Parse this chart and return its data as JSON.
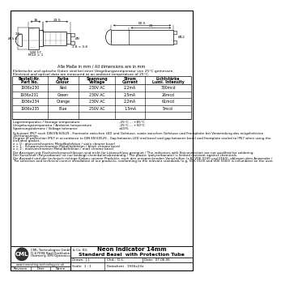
{
  "title_line1": "Neon Indicator 14mm",
  "title_line2": "Standard Bezel  with Protection Tube",
  "company_name": "CML",
  "company_line1": "CML Technologies GmbH & Co. KG",
  "company_line2": "D-67098 Bad Dürkheim",
  "company_line3": "(formerly EMI Optronics)",
  "website": "www.innovating-technology.co.uk",
  "drawn_by": "J.J.",
  "checked_by": "D.L.",
  "date": "07.06.06",
  "scale": "1 : 1",
  "datasheet_num": "1936x23x",
  "dim_note": "Alle Maße in mm / All dimensions are in mm",
  "elec_note_de": "Elektrische und optische Daten sind bei einer Umgebungstemperatur von 25°C gemessen.",
  "elec_note_en": "Electrical and optical data are measured at an ambient temperature of 25°C.",
  "headers_de": [
    "Bestell-Nr.",
    "Farbe",
    "Spannung",
    "Strom",
    "Lichtstärke"
  ],
  "headers_en": [
    "Part No.",
    "Colour",
    "Voltage",
    "Current",
    "Lumi. Intensity"
  ],
  "table_rows": [
    [
      "1936x230",
      "Red",
      "230V AC",
      "2.2mA",
      "330mcd"
    ],
    [
      "1936x231",
      "Green",
      "230V AC",
      "2.5mA",
      "26mcd"
    ],
    [
      "1936x234",
      "Orange",
      "230V AC",
      "2.2mA",
      "61mcd"
    ],
    [
      "1936x235",
      "Blue",
      "250V AC",
      "1.5mA",
      "5mcd"
    ]
  ],
  "storage_label": "Lagertemperatur / Storage temperature",
  "storage_val": "-25°C ... +85°C",
  "ambient_label": "Umgebungstemperatur / Ambient temperature",
  "ambient_val": "-25°C ... +50°C",
  "voltage_label": "Spannungstoleranz / Voltage tolerance",
  "voltage_val": "±10%",
  "prot_de1": "Schutzart IP67 nach DIN EN 60529 - Frontseite zwischen LED und Gehäuse, sowie zwischen Gehäuse und Frontplatte bei Verwendung des mitgelieferten",
  "prot_de2": "Dichtungsrings.",
  "prot_en1": "Degree of protection IP67 in accordance to DIN EN 60529 - Gap between LED and bezel and gap between bezel and frontplate sealed to IP67 when using the",
  "prot_en2": "included gasket.",
  "finish0": "x = 0 : glanzverchromter Metallbefektion / satin chrome bezel",
  "finish1": "x = 1 : schwarzverchromter Metallbefektion / black chrome bezel",
  "finish2": "x = 2 : mattverchromter Metallbefektion / matt chrome bezel",
  "note1": "Die Anzeigen mit Flachsteckeranschlüssen sind nicht für Lötanschluss geeignet / The indicators with flatconnection are not qualified for soldering.",
  "note2": "Der Kunststoff (Polycarbonat) ist nur bedingt chemikaliensbeständig / The plastic (polycarbonate) is limited resistant against chemicals.",
  "note3a": "Die Auswahl und der technisch richtige Einbau unserer Produkte, nach den entsprechenden Vorschriften (z.B. VDE 0100 und 0160), obliegen dem Anwender /",
  "note3b": "The selection and technical correct installation of our products, conforming to the relevant standards (e.g. VDE 0100 and VDE 0160) is incumbent on the user.",
  "bg_color": "#ffffff"
}
